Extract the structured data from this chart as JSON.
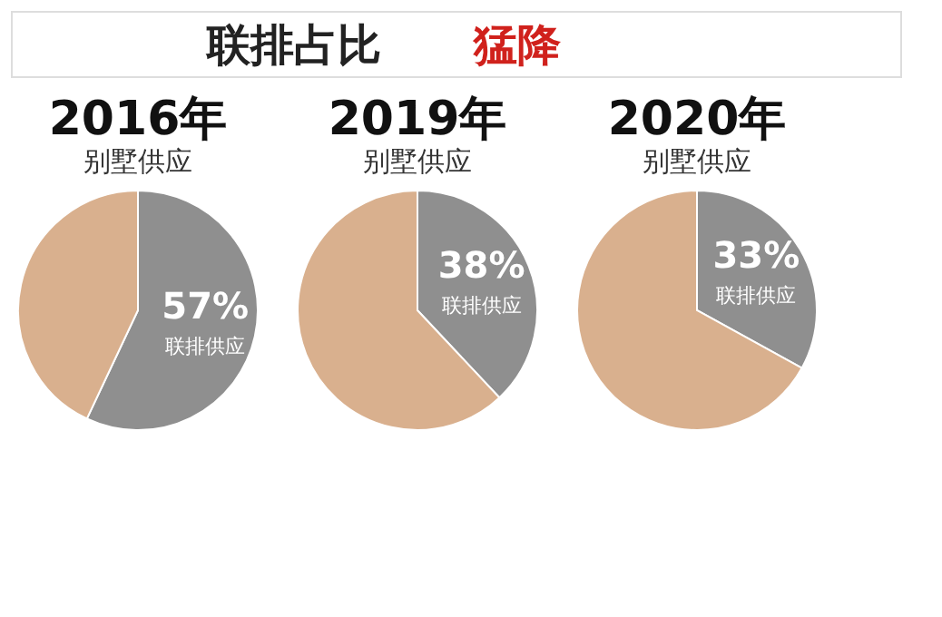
{
  "chart_data": [
    {
      "type": "other",
      "annotations": [
        "联排占比",
        "猛降"
      ]
    },
    {
      "type": "pie",
      "title": "2016年",
      "subtitle": "别墅供应",
      "categories": [
        "联排供应",
        null
      ],
      "values": [
        57,
        43
      ],
      "colors": [
        "#8f8f8f",
        "#d9b08e"
      ],
      "value_labels": [
        "57%",
        null
      ]
    },
    {
      "type": "pie",
      "title": "2019年",
      "subtitle": "别墅供应",
      "categories": [
        "联排供应",
        null
      ],
      "values": [
        38,
        62
      ],
      "colors": [
        "#8f8f8f",
        "#d9b08e"
      ],
      "value_labels": [
        "38%",
        null
      ]
    },
    {
      "type": "pie",
      "title": "2020年",
      "subtitle": "别墅供应",
      "categories": [
        "联排供应",
        null
      ],
      "values": [
        33,
        67
      ],
      "colors": [
        "#8f8f8f",
        "#d9b08e"
      ],
      "value_labels": [
        "33%",
        null
      ]
    }
  ]
}
